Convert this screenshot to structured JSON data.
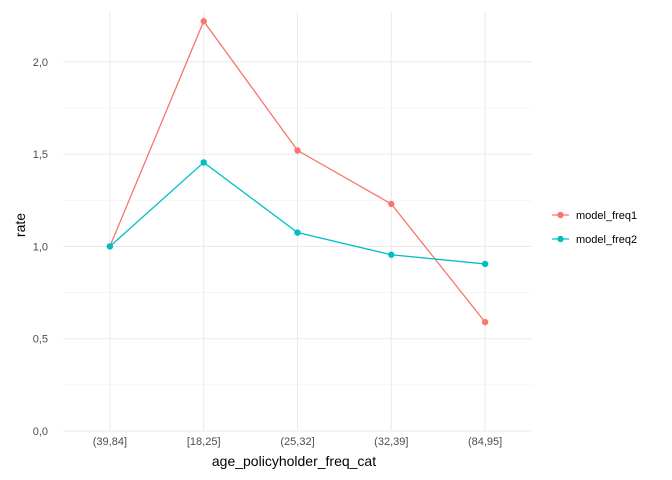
{
  "chart_data": {
    "type": "line",
    "title": "",
    "xlabel": "age_policyholder_freq_cat",
    "ylabel": "rate",
    "categories": [
      "(39,84]",
      "[18,25]",
      "(25,32]",
      "(32,39]",
      "(84,95]"
    ],
    "ylim": [
      0,
      2.27
    ],
    "yticks": [
      0,
      0.5,
      1,
      1.5,
      2
    ],
    "ytick_labels": [
      "0,0",
      "0,5",
      "1,0",
      "1,5",
      "2,0"
    ],
    "grid": true,
    "legend_position": "right",
    "series": [
      {
        "name": "model_freq1",
        "color": "#F8766D",
        "values": [
          1.0,
          2.22,
          1.52,
          1.23,
          0.59
        ]
      },
      {
        "name": "model_freq2",
        "color": "#00BFC4",
        "values": [
          1.0,
          1.455,
          1.075,
          0.955,
          0.905
        ]
      }
    ]
  }
}
